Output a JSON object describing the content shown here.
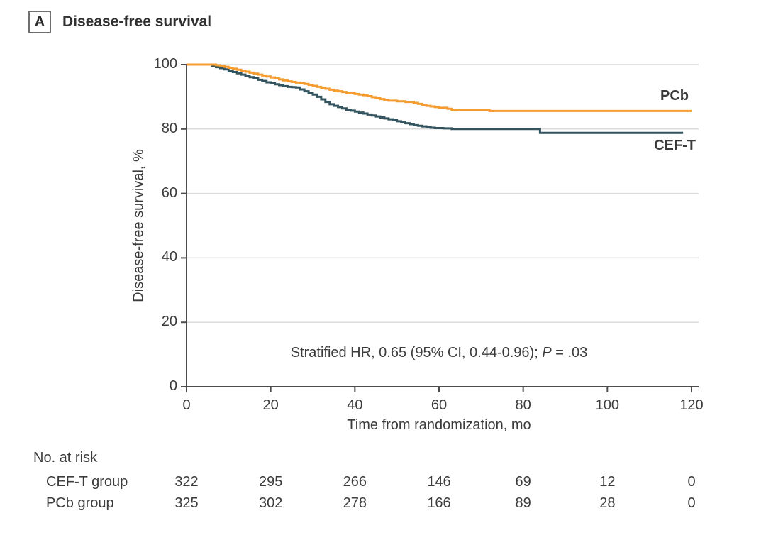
{
  "header": {
    "panel_label": "A",
    "title": "Disease-free survival"
  },
  "annotation": {
    "prefix": "Stratified HR, 0.65 (95% CI, 0.44-0.96);",
    "p": "P",
    "suffix": "= .03"
  },
  "colors": {
    "pcb": "#f59c30",
    "ceft": "#33545e",
    "grid": "#dcdcdc",
    "axis": "#4c4c4c",
    "text": "#3c3c3c"
  },
  "risk_table": {
    "header": "No. at risk",
    "times": [
      0,
      20,
      40,
      60,
      80,
      100,
      120
    ],
    "rows": [
      {
        "label": "CEF-T group",
        "counts": [
          "322",
          "295",
          "266",
          "146",
          "69",
          "12",
          "0"
        ]
      },
      {
        "label": "PCb group",
        "counts": [
          "325",
          "302",
          "278",
          "166",
          "89",
          "28",
          "0"
        ]
      }
    ]
  },
  "chart_data": {
    "type": "line",
    "subtype": "kaplan-meier-step",
    "title": "Disease-free survival",
    "xlabel": "Time from randomization, mo",
    "ylabel": "Disease-free survival, %",
    "xlim": [
      0,
      120
    ],
    "ylim": [
      0,
      100
    ],
    "xticks": [
      0,
      20,
      40,
      60,
      80,
      100,
      120
    ],
    "yticks": [
      0,
      20,
      40,
      60,
      80,
      100
    ],
    "grid": "horizontal",
    "legend_position": "end-of-line labels",
    "annotation_text": "Stratified HR, 0.65 (95% CI, 0.44-0.96); P = .03",
    "series": [
      {
        "name": "CEF-T",
        "end_label": "CEF-T",
        "color": "#33545e",
        "steps": [
          [
            0,
            100
          ],
          [
            5.5,
            100
          ],
          [
            6,
            99.6
          ],
          [
            7,
            99.2
          ],
          [
            8,
            98.9
          ],
          [
            9,
            98.5
          ],
          [
            10,
            98.1
          ],
          [
            11,
            97.7
          ],
          [
            12,
            97.3
          ],
          [
            13,
            96.9
          ],
          [
            14,
            96.5
          ],
          [
            15,
            96.1
          ],
          [
            16,
            95.7
          ],
          [
            17,
            95.3
          ],
          [
            18,
            94.9
          ],
          [
            19,
            94.5
          ],
          [
            20,
            94.2
          ],
          [
            21,
            93.9
          ],
          [
            22,
            93.6
          ],
          [
            23,
            93.3
          ],
          [
            24,
            93.1
          ],
          [
            25,
            93.0
          ],
          [
            26,
            92.9
          ],
          [
            27,
            92.3
          ],
          [
            28,
            91.7
          ],
          [
            29,
            91.2
          ],
          [
            30,
            90.7
          ],
          [
            31,
            90.0
          ],
          [
            32,
            89.2
          ],
          [
            33,
            88.4
          ],
          [
            34,
            87.7
          ],
          [
            35,
            87.2
          ],
          [
            36,
            86.8
          ],
          [
            37,
            86.4
          ],
          [
            38,
            86.0
          ],
          [
            39,
            85.7
          ],
          [
            40,
            85.4
          ],
          [
            41,
            85.1
          ],
          [
            42,
            84.8
          ],
          [
            43,
            84.5
          ],
          [
            44,
            84.2
          ],
          [
            45,
            83.9
          ],
          [
            46,
            83.6
          ],
          [
            47,
            83.3
          ],
          [
            48,
            83.0
          ],
          [
            49,
            82.7
          ],
          [
            50,
            82.4
          ],
          [
            51,
            82.1
          ],
          [
            52,
            81.8
          ],
          [
            53,
            81.5
          ],
          [
            54,
            81.2
          ],
          [
            55,
            81.0
          ],
          [
            56,
            80.8
          ],
          [
            57,
            80.6
          ],
          [
            58,
            80.4
          ],
          [
            59,
            80.3
          ],
          [
            61,
            80.2
          ],
          [
            63,
            80.0
          ],
          [
            84,
            78.8
          ],
          [
            118,
            78.8
          ]
        ]
      },
      {
        "name": "PCb",
        "end_label": "PCb",
        "color": "#f59c30",
        "steps": [
          [
            0,
            100
          ],
          [
            6,
            100
          ],
          [
            7,
            99.8
          ],
          [
            8,
            99.6
          ],
          [
            9,
            99.3
          ],
          [
            10,
            99.0
          ],
          [
            11,
            98.7
          ],
          [
            12,
            98.4
          ],
          [
            13,
            98.1
          ],
          [
            14,
            97.8
          ],
          [
            15,
            97.5
          ],
          [
            16,
            97.2
          ],
          [
            17,
            96.9
          ],
          [
            18,
            96.6
          ],
          [
            19,
            96.3
          ],
          [
            20,
            96.0
          ],
          [
            21,
            95.7
          ],
          [
            22,
            95.4
          ],
          [
            23,
            95.1
          ],
          [
            24,
            94.8
          ],
          [
            25,
            94.6
          ],
          [
            26,
            94.4
          ],
          [
            27,
            94.2
          ],
          [
            28,
            94.0
          ],
          [
            29,
            93.7
          ],
          [
            30,
            93.4
          ],
          [
            31,
            93.1
          ],
          [
            32,
            92.8
          ],
          [
            33,
            92.5
          ],
          [
            34,
            92.2
          ],
          [
            35,
            91.9
          ],
          [
            36,
            91.7
          ],
          [
            37,
            91.5
          ],
          [
            38,
            91.3
          ],
          [
            39,
            91.1
          ],
          [
            40,
            90.9
          ],
          [
            41,
            90.7
          ],
          [
            42,
            90.5
          ],
          [
            43,
            90.2
          ],
          [
            44,
            89.9
          ],
          [
            45,
            89.6
          ],
          [
            46,
            89.3
          ],
          [
            47,
            89.0
          ],
          [
            48,
            88.8
          ],
          [
            50,
            88.6
          ],
          [
            52,
            88.4
          ],
          [
            54,
            88.1
          ],
          [
            55,
            87.8
          ],
          [
            56,
            87.5
          ],
          [
            57,
            87.2
          ],
          [
            58,
            87.0
          ],
          [
            59,
            86.8
          ],
          [
            60,
            86.6
          ],
          [
            62,
            86.3
          ],
          [
            63,
            86.0
          ],
          [
            64,
            85.9
          ],
          [
            72,
            85.6
          ],
          [
            120,
            85.6
          ]
        ]
      }
    ]
  }
}
